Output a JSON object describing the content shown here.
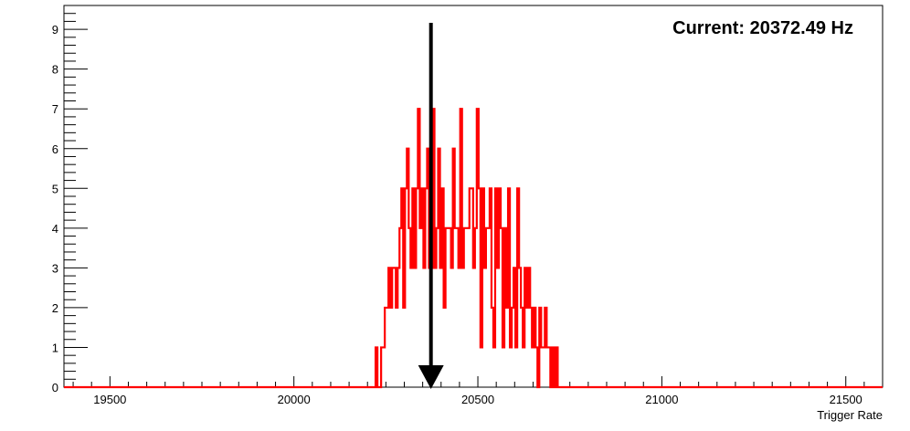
{
  "chart_data": {
    "type": "histogram",
    "title": "",
    "xlabel": "Trigger Rate",
    "ylabel": "",
    "xlim": [
      19375,
      21600
    ],
    "ylim": [
      0,
      9.6
    ],
    "grid": false,
    "x_ticks": [
      19500,
      20000,
      20500,
      21000,
      21500
    ],
    "y_ticks": [
      0,
      1,
      2,
      3,
      4,
      5,
      6,
      7,
      8,
      9
    ],
    "x_tick_labels": [
      "19500",
      "20000",
      "20500",
      "21000",
      "21500"
    ],
    "y_tick_labels": [
      "0",
      "1",
      "2",
      "3",
      "4",
      "5",
      "6",
      "7",
      "8",
      "9"
    ],
    "series": [
      {
        "color": "#ff0000",
        "x": [
          20222,
          20227,
          20232,
          20237,
          20242,
          20247,
          20252,
          20257,
          20262,
          20267,
          20272,
          20277,
          20282,
          20287,
          20292,
          20297,
          20302,
          20307,
          20312,
          20317,
          20322,
          20327,
          20332,
          20337,
          20342,
          20347,
          20352,
          20357,
          20362,
          20367,
          20372,
          20377,
          20382,
          20387,
          20392,
          20397,
          20402,
          20407,
          20412,
          20417,
          20422,
          20427,
          20432,
          20437,
          20442,
          20447,
          20452,
          20457,
          20462,
          20467,
          20472,
          20477,
          20482,
          20487,
          20492,
          20497,
          20502,
          20507,
          20512,
          20517,
          20522,
          20527,
          20532,
          20537,
          20542,
          20547,
          20552,
          20557,
          20562,
          20567,
          20572,
          20577,
          20582,
          20587,
          20592,
          20597,
          20602,
          20607,
          20612,
          20617,
          20622,
          20627,
          20632,
          20637,
          20642,
          20647,
          20652,
          20657,
          20662,
          20667,
          20672,
          20677,
          20682,
          20687,
          20692,
          20697,
          20702,
          20707,
          20712,
          20717,
          20722,
          20727,
          20732,
          20737,
          20742,
          20747
        ],
        "values": [
          1,
          0,
          0,
          1,
          1,
          2,
          2,
          3,
          2,
          3,
          3,
          2,
          3,
          4,
          5,
          2,
          5,
          6,
          4,
          3,
          5,
          3,
          5,
          7,
          4,
          5,
          3,
          5,
          6,
          3,
          3,
          7,
          3,
          4,
          6,
          3,
          5,
          2,
          4,
          4,
          4,
          3,
          6,
          4,
          4,
          3,
          7,
          3,
          4,
          4,
          4,
          5,
          5,
          3,
          4,
          7,
          5,
          1,
          5,
          3,
          4,
          4,
          5,
          2,
          1,
          5,
          3,
          5,
          4,
          1,
          4,
          2,
          5,
          1,
          2,
          3,
          1,
          5,
          3,
          2,
          1,
          3,
          2,
          3,
          2,
          1,
          2,
          1,
          0,
          2,
          1,
          1,
          2,
          1,
          1,
          0,
          1,
          0,
          1,
          0,
          0,
          0,
          0,
          0,
          0,
          0
        ]
      }
    ],
    "marker": {
      "x": 20372.49,
      "label": "Current: 20372.49 Hz"
    }
  }
}
